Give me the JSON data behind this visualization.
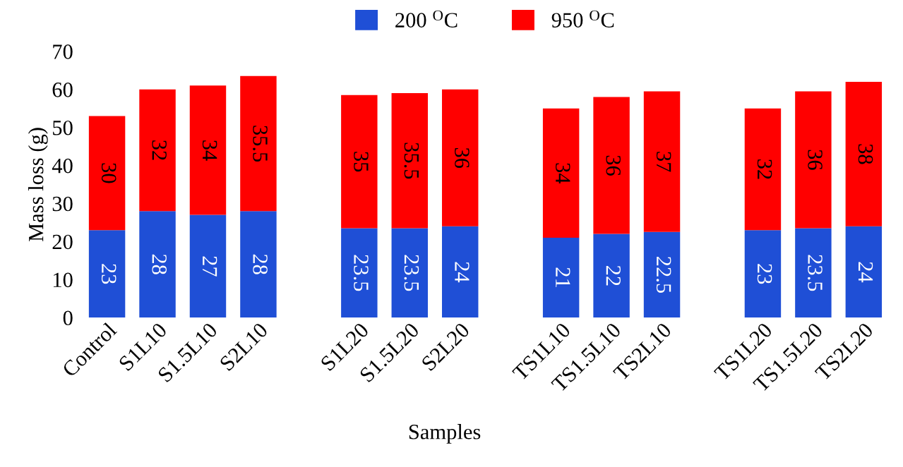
{
  "chart_data": {
    "type": "bar",
    "stacked": true,
    "xlabel": "Samples",
    "ylabel": "Mass loss (g)",
    "categories": [
      "Control",
      "S1L10",
      "S1.5L10",
      "S2L10",
      null,
      "S1L20",
      "S1.5L20",
      "S2L20",
      null,
      "TS1L10",
      "TS1.5L10",
      "TS2L10",
      null,
      "TS1L20",
      "TS1.5L20",
      "TS2L20"
    ],
    "series": [
      {
        "name": "200 $^{O}$C",
        "color": "#1f4fd6",
        "values": [
          23,
          28,
          27,
          28,
          null,
          23.5,
          23.5,
          24,
          null,
          21,
          22,
          22.5,
          null,
          23,
          23.5,
          24
        ]
      },
      {
        "name": "950 $^{O}$C",
        "color": "#ff0000",
        "values": [
          30,
          32,
          34,
          35.5,
          null,
          35,
          35.5,
          36,
          null,
          34,
          36,
          37,
          null,
          32,
          36,
          38
        ]
      }
    ],
    "ylim": [
      0,
      70
    ],
    "yticks": [
      0,
      10,
      20,
      30,
      40,
      50,
      60,
      70
    ],
    "data_labels": true,
    "legend": "top",
    "grid": false
  }
}
